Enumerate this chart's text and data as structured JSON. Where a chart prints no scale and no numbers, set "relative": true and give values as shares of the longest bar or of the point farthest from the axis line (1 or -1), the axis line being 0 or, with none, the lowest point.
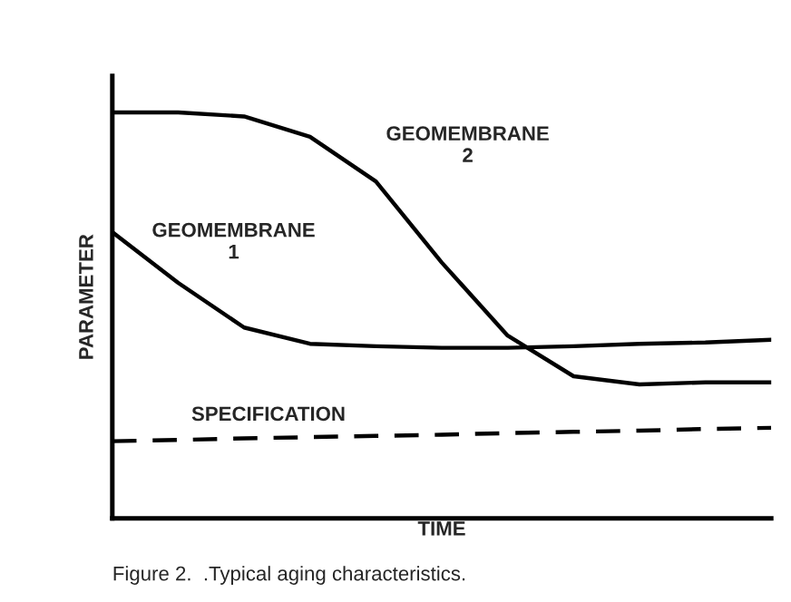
{
  "chart_data": {
    "type": "line",
    "relative": true,
    "xlabel": "TIME",
    "ylabel": "PARAMETER",
    "categories": [
      null,
      null,
      null,
      null,
      null,
      null,
      null,
      null,
      null,
      null,
      null
    ],
    "series": [
      {
        "name": "GEOMEMBRANE 2",
        "color": "#000000",
        "values": [
          1.0,
          1.0,
          0.99,
          0.94,
          0.83,
          0.63,
          0.45,
          0.35,
          0.33,
          0.335,
          0.335
        ]
      },
      {
        "name": "GEOMEMBRANE 1",
        "color": "#000000",
        "values": [
          0.705,
          0.58,
          0.47,
          0.43,
          0.424,
          0.42,
          0.42,
          0.424,
          0.43,
          0.433,
          0.44
        ]
      },
      {
        "name": "SPECIFICATION",
        "color": "#000000",
        "line_style": "dashed",
        "values": [
          0.19,
          0.193,
          0.197,
          0.2,
          0.203,
          0.206,
          0.21,
          0.213,
          0.216,
          0.22,
          0.223
        ]
      }
    ],
    "annotations": [
      "Figure 2.  .Typical aging characteristics."
    ],
    "tick_labels": false,
    "legend": false
  }
}
